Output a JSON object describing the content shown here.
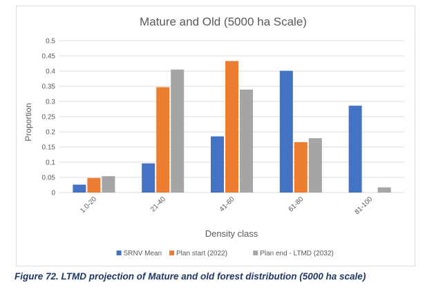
{
  "caption": "Figure 72. LTMD projection of Mature and old forest distribution (5000 ha scale)",
  "chart_data": {
    "type": "bar",
    "title": "Mature and Old (5000 ha Scale)",
    "xlabel": "Density class",
    "ylabel": "Proportion",
    "ylim": [
      0,
      0.5
    ],
    "yticks": [
      "0",
      "0.05",
      "0.1",
      "0.15",
      "0.2",
      "0.25",
      "0.3",
      "0.35",
      "0.4",
      "0.45",
      "0.5"
    ],
    "grid": true,
    "legend_position": "bottom",
    "categories": [
      "1.0-20",
      "21-40",
      "41-60",
      "61-80",
      "81-100"
    ],
    "series": [
      {
        "name": "SRNV Mean",
        "color": "#4472c4",
        "values": [
          0.026,
          0.096,
          0.185,
          0.401,
          0.286
        ]
      },
      {
        "name": "Plan start (2022)",
        "color": "#ed7d31",
        "values": [
          0.048,
          0.347,
          0.433,
          0.166,
          0.0
        ]
      },
      {
        "name": "Plan end - LTMD (2032)",
        "color": "#a5a5a5",
        "values": [
          0.054,
          0.405,
          0.339,
          0.179,
          0.017
        ]
      }
    ]
  }
}
